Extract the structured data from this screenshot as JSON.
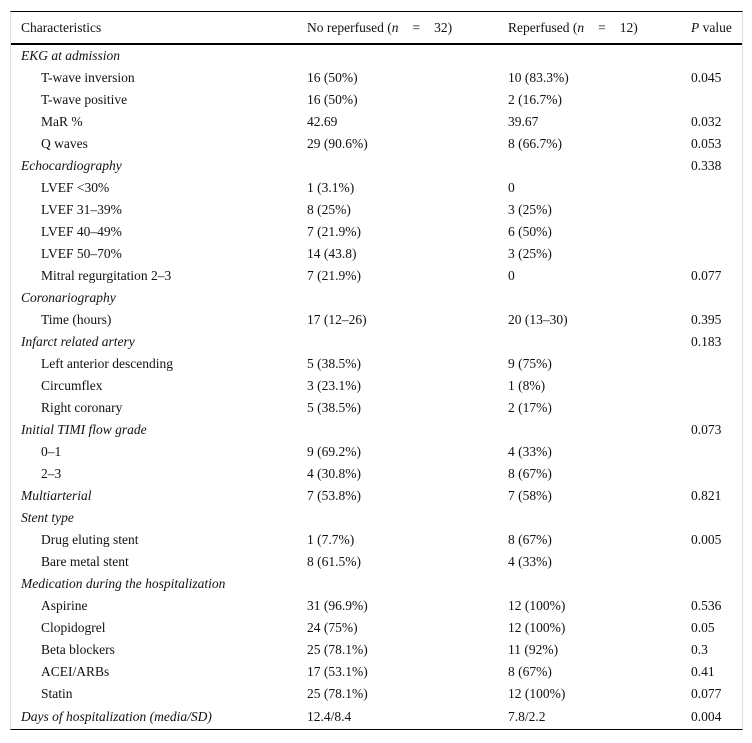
{
  "header": {
    "characteristics": "Characteristics",
    "no_reperfused": {
      "label": "No reperfused (",
      "n": "n",
      "eq": "=",
      "count": "32)"
    },
    "reperfused": {
      "label": "Reperfused (",
      "n": "n",
      "eq": "=",
      "count": "12)"
    },
    "p_value": {
      "p": "P",
      "label": " value"
    }
  },
  "rows": [
    {
      "type": "sec",
      "label": "EKG at admission",
      "no": "",
      "re": "",
      "p": ""
    },
    {
      "type": "sub",
      "label": "T-wave inversion",
      "no": "16 (50%)",
      "re": "10 (83.3%)",
      "p": "0.045"
    },
    {
      "type": "sub",
      "label": "T-wave positive",
      "no": "16 (50%)",
      "re": "2 (16.7%)",
      "p": ""
    },
    {
      "type": "sub",
      "label": "MaR %",
      "no": "42.69",
      "re": "39.67",
      "p": "0.032"
    },
    {
      "type": "sub",
      "label": "Q waves",
      "no": "29 (90.6%)",
      "re": "8 (66.7%)",
      "p": "0.053"
    },
    {
      "type": "sec",
      "label": "Echocardiography",
      "no": "",
      "re": "",
      "p": "0.338"
    },
    {
      "type": "sub",
      "label": "LVEF <30%",
      "no": "1 (3.1%)",
      "re": "0",
      "p": ""
    },
    {
      "type": "sub",
      "label": "LVEF 31–39%",
      "no": "8 (25%)",
      "re": "3 (25%)",
      "p": ""
    },
    {
      "type": "sub",
      "label": "LVEF 40–49%",
      "no": "7 (21.9%)",
      "re": "6 (50%)",
      "p": ""
    },
    {
      "type": "sub",
      "label": "LVEF 50–70%",
      "no": "14 (43.8)",
      "re": "3 (25%)",
      "p": ""
    },
    {
      "type": "sub",
      "label": "Mitral regurgitation 2–3",
      "no": "7 (21.9%)",
      "re": "0",
      "p": "0.077"
    },
    {
      "type": "sec",
      "label": "Coronariography",
      "no": "",
      "re": "",
      "p": ""
    },
    {
      "type": "sub",
      "label": "Time (hours)",
      "no": "17 (12–26)",
      "re": "20 (13–30)",
      "p": "0.395"
    },
    {
      "type": "sec",
      "label": "Infarct related artery",
      "no": "",
      "re": "",
      "p": "0.183"
    },
    {
      "type": "sub",
      "label": "Left anterior descending",
      "no": "5 (38.5%)",
      "re": "9 (75%)",
      "p": ""
    },
    {
      "type": "sub",
      "label": "Circumflex",
      "no": "3 (23.1%)",
      "re": "1 (8%)",
      "p": ""
    },
    {
      "type": "sub",
      "label": "Right coronary",
      "no": "5 (38.5%)",
      "re": "2 (17%)",
      "p": ""
    },
    {
      "type": "sec",
      "label": "Initial TIMI flow grade",
      "no": "",
      "re": "",
      "p": "0.073"
    },
    {
      "type": "sub",
      "label": "0–1",
      "no": "9 (69.2%)",
      "re": "4 (33%)",
      "p": ""
    },
    {
      "type": "sub",
      "label": "2–3",
      "no": "4 (30.8%)",
      "re": "8 (67%)",
      "p": ""
    },
    {
      "type": "sec",
      "label": "Multiarterial",
      "no": "7 (53.8%)",
      "re": "7 (58%)",
      "p": "0.821"
    },
    {
      "type": "sec",
      "label": "Stent type",
      "no": "",
      "re": "",
      "p": ""
    },
    {
      "type": "sub",
      "label": "Drug eluting stent",
      "no": "1 (7.7%)",
      "re": "8 (67%)",
      "p": "0.005"
    },
    {
      "type": "sub",
      "label": "Bare metal stent",
      "no": "8 (61.5%)",
      "re": "4 (33%)",
      "p": ""
    },
    {
      "type": "sec",
      "label": "Medication during the hospitalization",
      "no": "",
      "re": "",
      "p": ""
    },
    {
      "type": "sub",
      "label": "Aspirine",
      "no": "31 (96.9%)",
      "re": "12 (100%)",
      "p": "0.536"
    },
    {
      "type": "sub",
      "label": "Clopidogrel",
      "no": "24 (75%)",
      "re": "12 (100%)",
      "p": "0.05"
    },
    {
      "type": "sub",
      "label": "Beta blockers",
      "no": "25 (78.1%)",
      "re": "11 (92%)",
      "p": "0.3"
    },
    {
      "type": "sub",
      "label": "ACEI/ARBs",
      "no": "17 (53.1%)",
      "re": "8 (67%)",
      "p": "0.41"
    },
    {
      "type": "sub",
      "label": "Statin",
      "no": "25 (78.1%)",
      "re": "12 (100%)",
      "p": "0.077"
    },
    {
      "type": "sec",
      "label": "Days of hospitalization (media/SD)",
      "no": "12.4/8.4",
      "re": "7.8/2.2",
      "p": "0.004"
    }
  ]
}
